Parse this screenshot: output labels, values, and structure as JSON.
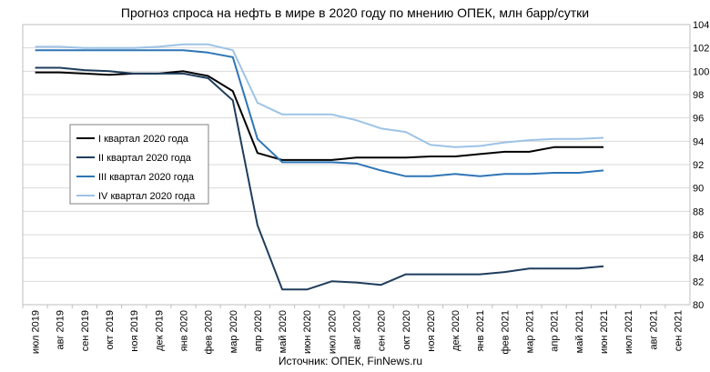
{
  "chart_data": {
    "type": "line",
    "title": "Прогноз спроса на нефть в мире в 2020 году по мнению ОПЕК, млн барр/сутки",
    "source": "Источник: ОПЕК, FinNews.ru",
    "ylim": [
      80,
      104
    ],
    "y_ticks": [
      80,
      82,
      84,
      86,
      88,
      90,
      92,
      94,
      96,
      98,
      100,
      102,
      104
    ],
    "y_axis_side": "right",
    "grid": true,
    "legend_placement": "left-middle",
    "categories": [
      "июл 2019",
      "авг 2019",
      "сен 2019",
      "окт 2019",
      "ноя 2019",
      "дек 2019",
      "янв 2020",
      "фев 2020",
      "мар 2020",
      "апр 2020",
      "май 2020",
      "июн 2020",
      "июл 2020",
      "авг 2020",
      "сен 2020",
      "окт 2020",
      "ноя 2020",
      "дек 2020",
      "янв 2021",
      "фев 2021",
      "мар 2021",
      "апр 2021",
      "май 2021",
      "июн 2021",
      "июл 2021",
      "авг 2021",
      "сен 2021"
    ],
    "series": [
      {
        "name": "I квартал 2020  года",
        "color": "#000000",
        "values": [
          99.9,
          99.9,
          99.8,
          99.7,
          99.8,
          99.8,
          100.0,
          99.6,
          98.3,
          93.0,
          92.4,
          92.4,
          92.4,
          92.6,
          92.6,
          92.6,
          92.7,
          92.7,
          92.9,
          93.1,
          93.1,
          93.5,
          93.5,
          93.5,
          null,
          null,
          null
        ]
      },
      {
        "name": "II квартал 2020  года",
        "color": "#1f3d5c",
        "values": [
          100.3,
          100.3,
          100.1,
          100.0,
          99.8,
          99.8,
          99.8,
          99.4,
          97.5,
          86.8,
          81.3,
          81.3,
          82.0,
          81.9,
          81.7,
          82.6,
          82.6,
          82.6,
          82.6,
          82.8,
          83.1,
          83.1,
          83.1,
          83.3,
          null,
          null,
          null
        ]
      },
      {
        "name": "III квартал 2020  года",
        "color": "#2e75b6",
        "values": [
          101.8,
          101.8,
          101.8,
          101.8,
          101.8,
          101.8,
          101.8,
          101.6,
          101.2,
          94.2,
          92.2,
          92.2,
          92.2,
          92.1,
          91.5,
          91.0,
          91.0,
          91.2,
          91.0,
          91.2,
          91.2,
          91.3,
          91.3,
          91.5,
          null,
          null,
          null
        ]
      },
      {
        "name": "IV квартал 2020  года",
        "color": "#9dc3e6",
        "values": [
          102.1,
          102.1,
          102.0,
          102.0,
          102.0,
          102.1,
          102.3,
          102.3,
          101.8,
          97.3,
          96.3,
          96.3,
          96.3,
          95.8,
          95.1,
          94.8,
          93.7,
          93.5,
          93.6,
          93.9,
          94.1,
          94.2,
          94.2,
          94.3,
          null,
          null,
          null
        ]
      }
    ]
  }
}
